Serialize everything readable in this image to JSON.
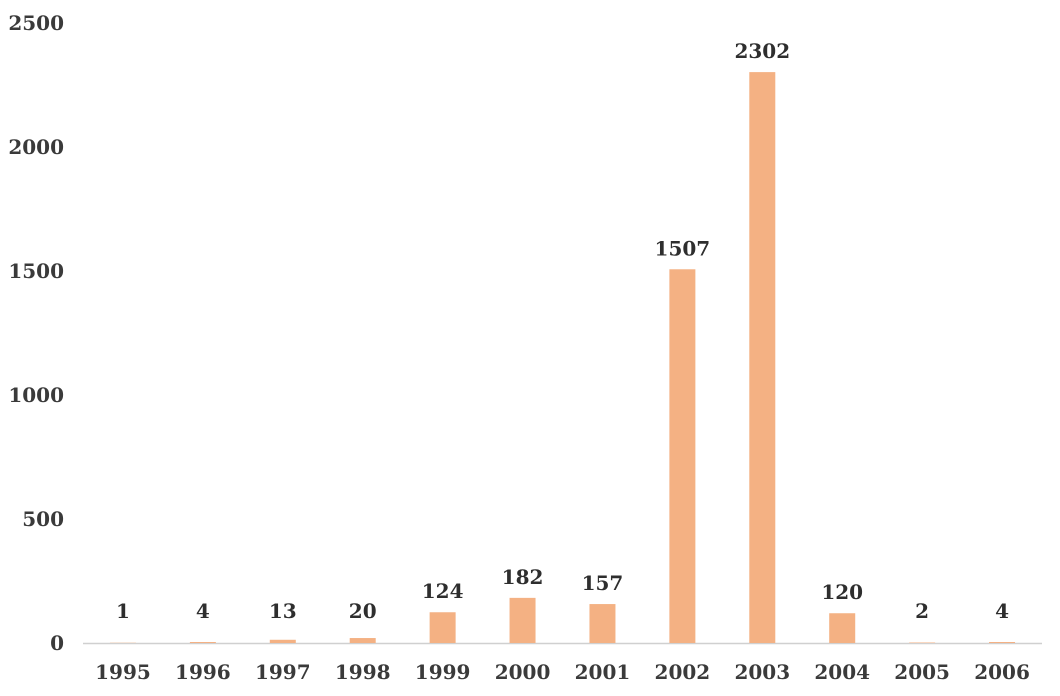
{
  "chart_data": {
    "type": "bar",
    "title": "",
    "xlabel": "",
    "ylabel": "",
    "categories": [
      "1995",
      "1996",
      "1997",
      "1998",
      "1999",
      "2000",
      "2001",
      "2002",
      "2003",
      "2004",
      "2005",
      "2006"
    ],
    "values": [
      1,
      4,
      13,
      20,
      124,
      182,
      157,
      1507,
      2302,
      120,
      2,
      4
    ],
    "data_labels": [
      "1",
      "4",
      "13",
      "20",
      "124",
      "182",
      "157",
      "1507",
      "2302",
      "120",
      "2",
      "4"
    ],
    "ylim": [
      0,
      2500
    ],
    "y_ticks": [
      "0",
      "500",
      "1000",
      "1500",
      "2000",
      "2500"
    ],
    "y_tick_values": [
      0,
      500,
      1000,
      1500,
      2000,
      2500
    ],
    "grid": false,
    "legend": "none",
    "bar_color": "#f4b183",
    "axis_color": "#d0d0d0"
  }
}
